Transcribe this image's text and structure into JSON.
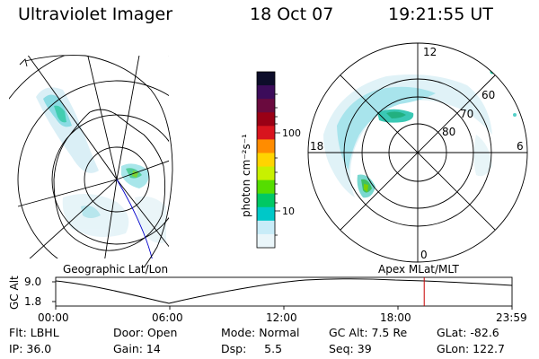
{
  "header": {
    "instrument": "Ultraviolet Imager",
    "date": "18 Oct 07",
    "time": "19:21:55 UT"
  },
  "colorbar": {
    "unit_label": "photon cm⁻²s⁻¹",
    "ticks": [
      "100",
      "10"
    ],
    "colors": [
      "#0d0d2a",
      "#3c0c5a",
      "#6a0a3e",
      "#9a0015",
      "#d8141e",
      "#ff8c00",
      "#ffd400",
      "#c8f000",
      "#55dd00",
      "#00c864",
      "#00c8c8",
      "#c8ecf8",
      "#eaf6fa"
    ]
  },
  "left_map": {
    "caption": "Geographic Lat/Lon"
  },
  "right_map": {
    "caption": "Apex MLat/MLT",
    "mlt_labels": {
      "top": "12",
      "left": "18",
      "right": "6",
      "bottom": "0"
    },
    "lat_labels": [
      "60",
      "70",
      "80"
    ]
  },
  "altitude_plot": {
    "ylabel": "GC Alt",
    "y_ticks": [
      "9.0",
      "1.8"
    ],
    "x_ticks": [
      "00:00",
      "06:00",
      "12:00",
      "18:00",
      "23:59"
    ],
    "current_time_fraction": 0.8075,
    "marker_color": "#c80000"
  },
  "info": {
    "row1": [
      {
        "label": "Flt: LBHL"
      },
      {
        "label": "Door: Open"
      },
      {
        "label": "Mode: Normal"
      },
      {
        "label": "GC Alt: 7.5 Re"
      },
      {
        "label": "GLat: -82.6"
      }
    ],
    "row2": [
      {
        "label": "IP: 36.0"
      },
      {
        "label": "Gain: 14"
      },
      {
        "label": "Dsp:     5.5"
      },
      {
        "label": "Seq: 39"
      },
      {
        "label": "GLon: 122.7"
      }
    ]
  }
}
